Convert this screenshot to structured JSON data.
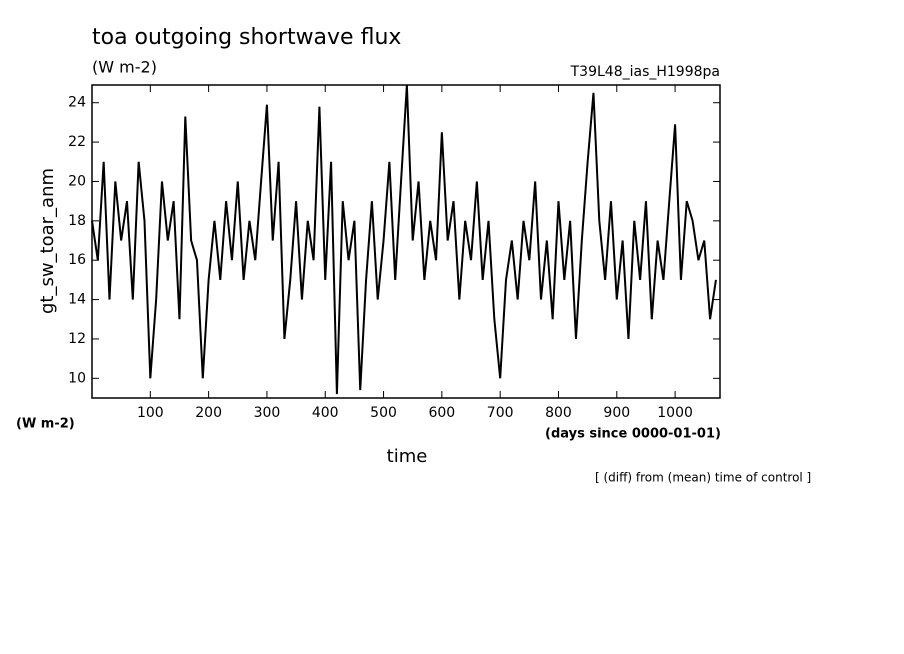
{
  "chart_data": {
    "type": "line",
    "title": "toa outgoing shortwave flux",
    "units_top": "(W m-2)",
    "experiment": "T39L48_ias_H1998pa",
    "y_label": "gt_sw_toar_anm",
    "units_bottom": "(W m-2)",
    "x_label": "time",
    "x_units": "(days since 0000-01-01)",
    "note": "[ (diff) from (mean) time of control ]",
    "color": "#000000",
    "xlim": [
      0,
      1077
    ],
    "ylim": [
      9,
      24.9
    ],
    "xticks": [
      100,
      200,
      300,
      400,
      500,
      600,
      700,
      800,
      900,
      1000
    ],
    "yticks": [
      10,
      12,
      14,
      16,
      18,
      20,
      22,
      24
    ],
    "x": [
      0,
      10,
      20,
      30,
      40,
      50,
      60,
      70,
      80,
      90,
      100,
      110,
      120,
      130,
      140,
      150,
      160,
      170,
      180,
      190,
      200,
      210,
      220,
      230,
      240,
      250,
      260,
      270,
      280,
      290,
      300,
      310,
      320,
      330,
      340,
      350,
      360,
      370,
      380,
      390,
      400,
      410,
      420,
      430,
      440,
      450,
      460,
      470,
      480,
      490,
      500,
      510,
      520,
      530,
      540,
      550,
      560,
      570,
      580,
      590,
      600,
      610,
      620,
      630,
      640,
      650,
      660,
      670,
      680,
      690,
      700,
      710,
      720,
      730,
      740,
      750,
      760,
      770,
      780,
      790,
      800,
      810,
      820,
      830,
      840,
      850,
      860,
      870,
      880,
      890,
      900,
      910,
      920,
      930,
      940,
      950,
      960,
      970,
      980,
      990,
      1000,
      1010,
      1020,
      1030,
      1040,
      1050,
      1060,
      1070
    ],
    "values": [
      18,
      16,
      21,
      14,
      20,
      17,
      19,
      14,
      21,
      18,
      10,
      14,
      20,
      17,
      19,
      13,
      23.3,
      17,
      16,
      10,
      15,
      18,
      15,
      19,
      16,
      20,
      15,
      18,
      16,
      20,
      23.9,
      17,
      21,
      12,
      15,
      19,
      14,
      18,
      16,
      23.8,
      15,
      21,
      9.2,
      19,
      16,
      18,
      9.4,
      15,
      19,
      14,
      17,
      21,
      15,
      20,
      24.9,
      17,
      20,
      15,
      18,
      16,
      22.5,
      17,
      19,
      14,
      18,
      16,
      20,
      15,
      18,
      13,
      10,
      15,
      17,
      14,
      18,
      16,
      20,
      14,
      17,
      13,
      19,
      15,
      18,
      12,
      17,
      21,
      24.5,
      18,
      15,
      19,
      14,
      17,
      12,
      18,
      15,
      19,
      13,
      17,
      15,
      19,
      22.9,
      15,
      19,
      18,
      16,
      17,
      13,
      15
    ]
  }
}
